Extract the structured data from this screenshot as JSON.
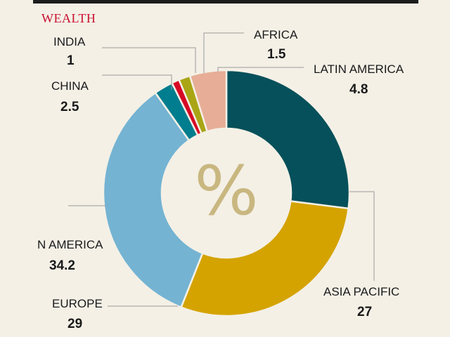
{
  "header": {
    "title": "WEALTH"
  },
  "chart_data": {
    "type": "pie",
    "title": "WEALTH",
    "center_label": "%",
    "unit": "%",
    "slices": [
      {
        "name": "ASIA PACIFIC",
        "value": 27,
        "color": "#05505a"
      },
      {
        "name": "EUROPE",
        "value": 29,
        "color": "#d4a300"
      },
      {
        "name": "N AMERICA",
        "value": 34.2,
        "color": "#74b3d2"
      },
      {
        "name": "CHINA",
        "value": 2.5,
        "color": "#007d8e"
      },
      {
        "name": "INDIA",
        "value": 1,
        "color": "#d60a25"
      },
      {
        "name": "AFRICA",
        "value": 1.5,
        "color": "#a9a515"
      },
      {
        "name": "LATIN AMERICA",
        "value": 4.8,
        "color": "#e7ad96"
      }
    ]
  }
}
